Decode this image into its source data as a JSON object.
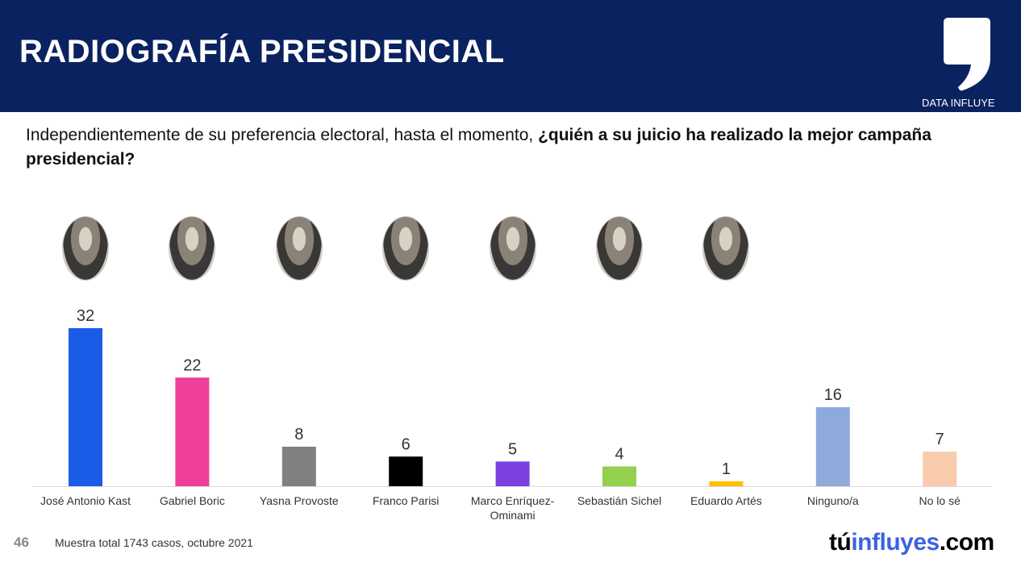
{
  "header": {
    "title": "RADIOGRAFÍA PRESIDENCIAL",
    "brand": "DATA INFLUYE"
  },
  "question": {
    "normal": "Independientemente de su preferencia electoral, hasta el momento, ",
    "bold": "¿quién a su juicio ha realizado la mejor campaña presidencial?"
  },
  "footer": {
    "page": "46",
    "note": "Muestra total 1743 casos, octubre 2021",
    "brand_a": "tú",
    "brand_b": "influyes",
    "brand_c": ".com"
  },
  "chart_data": {
    "type": "bar",
    "title": "",
    "xlabel": "",
    "ylabel": "",
    "ylim": [
      0,
      32
    ],
    "grid": false,
    "categories": [
      "José Antonio Kast",
      "Gabriel Boric",
      "Yasna Provoste",
      "Franco Parisi",
      "Marco Enríquez-Ominami",
      "Sebastián Sichel",
      "Eduardo Artés",
      "Ninguno/a",
      "No lo sé"
    ],
    "values": [
      32,
      22,
      8,
      6,
      5,
      4,
      1,
      16,
      7
    ],
    "colors": [
      "#1a5ce6",
      "#ee4096",
      "#808080",
      "#000000",
      "#7b40e0",
      "#92d050",
      "#ffc000",
      "#8eaadb",
      "#f8cbad"
    ],
    "has_photo": [
      true,
      true,
      true,
      true,
      true,
      true,
      true,
      false,
      false
    ]
  }
}
